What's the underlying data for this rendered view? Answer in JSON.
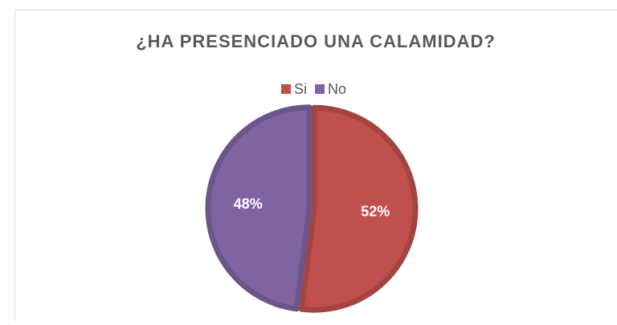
{
  "chart_data": {
    "type": "pie",
    "title": "¿HA PRESENCIADO UNA CALAMIDAD?",
    "categories": [
      "Si",
      "No"
    ],
    "values": [
      52,
      48
    ],
    "value_labels": [
      "52%",
      "48%"
    ],
    "colors": [
      "#c0504d",
      "#8064a2"
    ],
    "legend": "top"
  }
}
